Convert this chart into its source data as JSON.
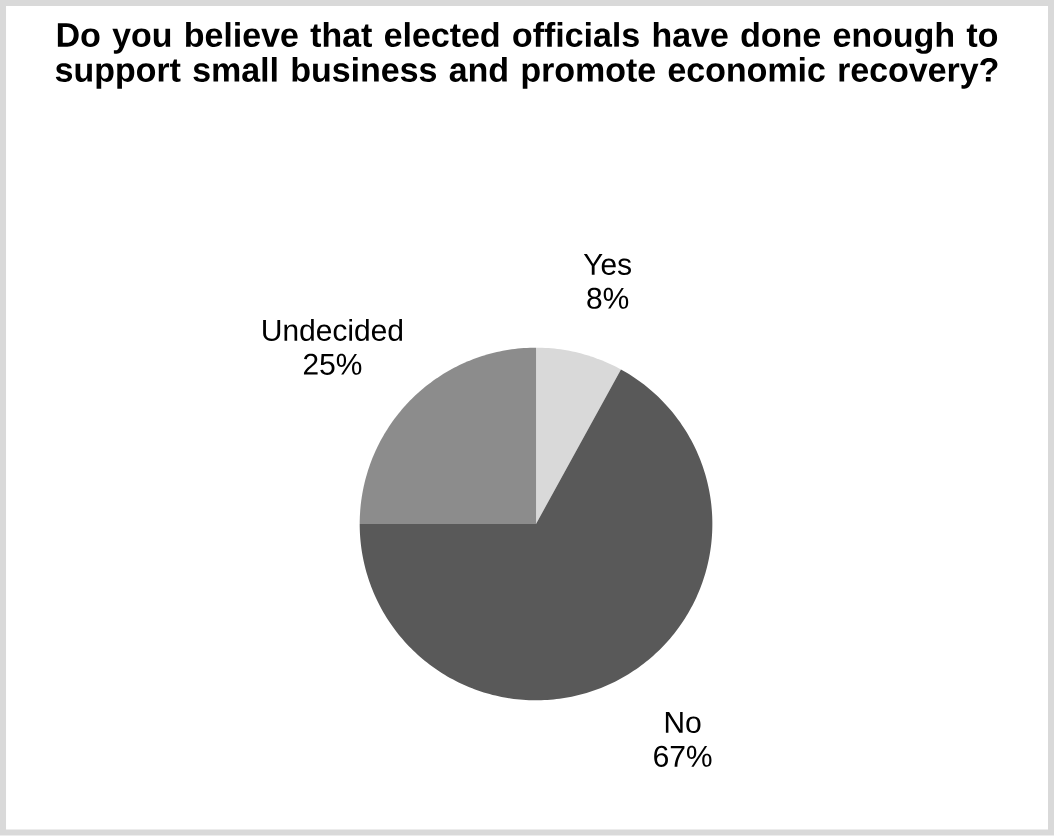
{
  "chart_data": {
    "type": "pie",
    "title": "Do you believe that elected officials have done enough to support small business and promote economic recovery?",
    "categories": [
      "Yes",
      "No",
      "Undecided"
    ],
    "values": [
      8,
      67,
      25
    ],
    "value_labels": [
      "8%",
      "67%",
      "25%"
    ],
    "colors": [
      "#d9d9d9",
      "#595959",
      "#8c8c8c"
    ]
  }
}
